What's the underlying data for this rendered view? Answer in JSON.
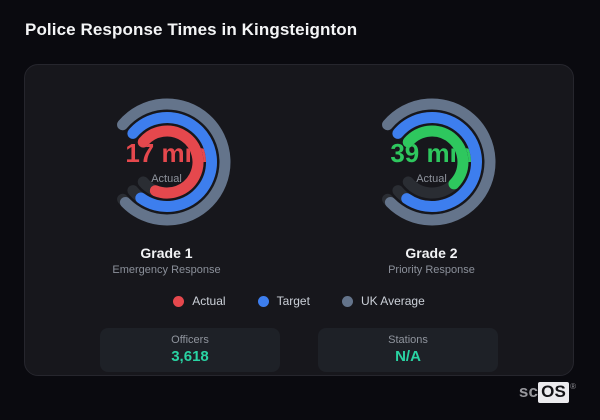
{
  "page": {
    "title": "Police Response Times in Kingsteignton"
  },
  "legend": [
    {
      "label": "Actual",
      "color": "#e5484d"
    },
    {
      "label": "Target",
      "color": "#3d7eee"
    },
    {
      "label": "UK Average",
      "color": "#64748b"
    }
  ],
  "stats": [
    {
      "label": "Officers",
      "value": "3,618"
    },
    {
      "label": "Stations",
      "value": "N/A"
    }
  ],
  "watermark": {
    "prefix": "sc",
    "suffix": "OS",
    "registered": "®"
  },
  "chart_data": {
    "type": "radial-gauge-pair",
    "start_angle": 140,
    "track_sweep": 280,
    "track_color": "#2a2d33",
    "accent_value_color": "#29d4a3",
    "gauges": [
      {
        "name": "Grade 1",
        "description": "Emergency Response",
        "value_label": "17 min",
        "value_sublabel": "Actual",
        "value_color": "#e5484d",
        "rings": [
          {
            "series": "UK Average",
            "color": "#64748b",
            "fill": 0.985
          },
          {
            "series": "Target",
            "color": "#3d7eee",
            "fill": 0.95
          },
          {
            "series": "Actual",
            "color": "#e5484d",
            "fill": 0.9
          }
        ]
      },
      {
        "name": "Grade 2",
        "description": "Priority Response",
        "value_label": "39 min",
        "value_sublabel": "Actual",
        "value_color": "#2ec75e",
        "rings": [
          {
            "series": "UK Average",
            "color": "#64748b",
            "fill": 0.985
          },
          {
            "series": "Target",
            "color": "#3d7eee",
            "fill": 0.945
          },
          {
            "series": "Actual",
            "color": "#2ec75e",
            "fill": 0.66
          }
        ]
      }
    ]
  }
}
